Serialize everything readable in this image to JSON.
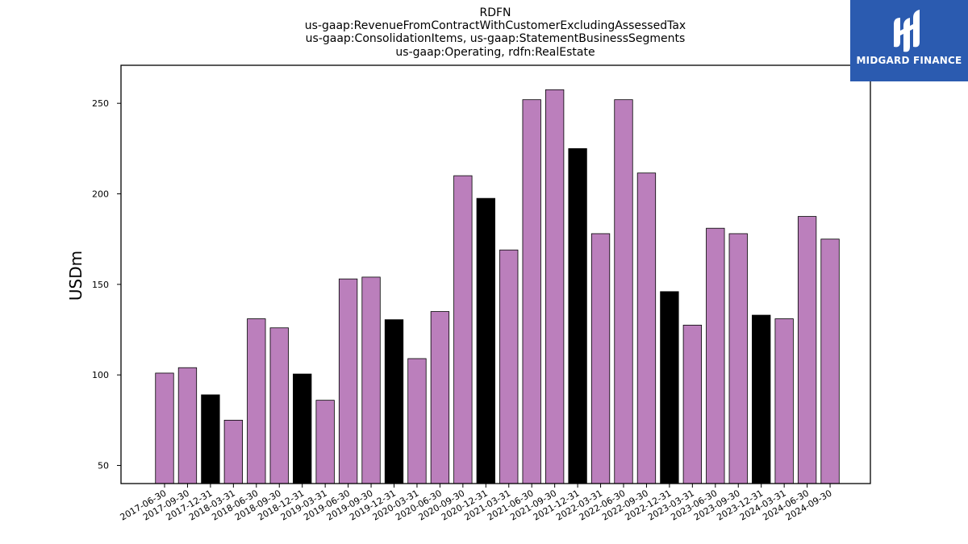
{
  "logo": {
    "text": "MIDGARD FINANCE",
    "background": "#2b5bb0"
  },
  "colors": {
    "regular": "#bb7fbc",
    "q4": "#000000",
    "edge": "#000000"
  },
  "chart_data": {
    "type": "bar",
    "title": [
      "RDFN",
      "us-gaap:RevenueFromContractWithCustomerExcludingAssessedTax",
      "us-gaap:ConsolidationItems, us-gaap:StatementBusinessSegments",
      "us-gaap:Operating, rdfn:RealEstate"
    ],
    "xlabel": "",
    "ylabel": "USDm",
    "ylim": [
      40,
      271
    ],
    "yticks": [
      50,
      100,
      150,
      200,
      250
    ],
    "grid": false,
    "categories": [
      "2017-06-30",
      "2017-09-30",
      "2017-12-31",
      "2018-03-31",
      "2018-06-30",
      "2018-09-30",
      "2018-12-31",
      "2019-03-31",
      "2019-06-30",
      "2019-09-30",
      "2019-12-31",
      "2020-03-31",
      "2020-06-30",
      "2020-09-30",
      "2020-12-31",
      "2021-03-31",
      "2021-06-30",
      "2021-09-30",
      "2021-12-31",
      "2022-03-31",
      "2022-06-30",
      "2022-09-30",
      "2022-12-31",
      "2023-03-31",
      "2023-06-30",
      "2023-09-30",
      "2023-12-31",
      "2024-03-31",
      "2024-06-30",
      "2024-09-30"
    ],
    "values": [
      101,
      104,
      89,
      75,
      131,
      126,
      100.5,
      86,
      153,
      154,
      130.5,
      109,
      135,
      210,
      197.5,
      169,
      252,
      257.5,
      225,
      178,
      252,
      211.5,
      146,
      127.5,
      181,
      178,
      133,
      131,
      187.5,
      175
    ]
  }
}
